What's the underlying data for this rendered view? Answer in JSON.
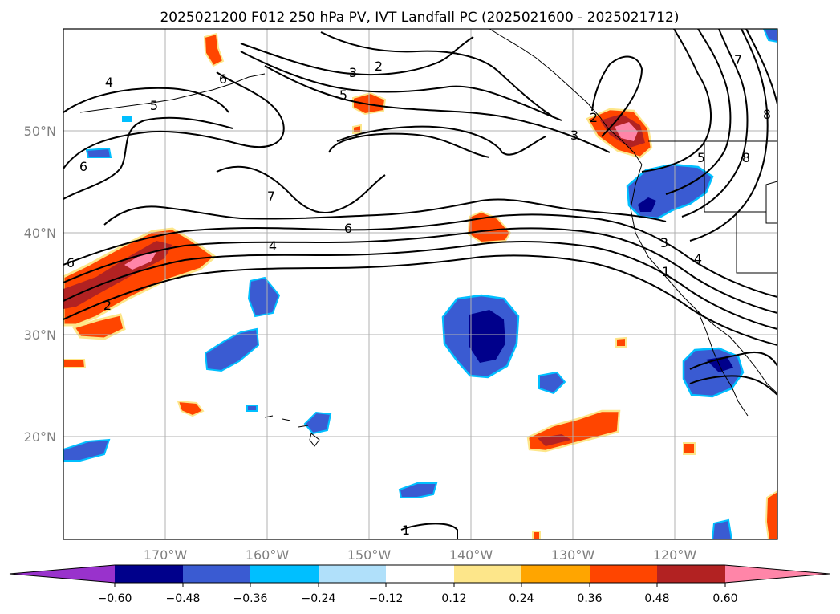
{
  "title": "2025021200 F012 250 hPa PV, IVT Landfall PC (2025021600 - 2025021712)",
  "map": {
    "projection": "PlateCarree",
    "lon_range": [
      -180,
      -110
    ],
    "lat_range": [
      10,
      60
    ],
    "gridlines": true,
    "coastlines": true,
    "state_borders": true
  },
  "lon_ticks": [
    "170°W",
    "160°W",
    "150°W",
    "140°W",
    "130°W",
    "120°W"
  ],
  "lat_ticks": [
    "50°N",
    "40°N",
    "30°N",
    "20°N"
  ],
  "contours": {
    "color": "#000000",
    "field": "250 hPa PV",
    "labels": [
      "4",
      "5",
      "6",
      "2",
      "3",
      "5",
      "6",
      "7",
      "6",
      "4",
      "2",
      "3",
      "7",
      "8",
      "8",
      "3",
      "4",
      "1",
      "1",
      "2",
      "5",
      "6"
    ]
  },
  "shading": {
    "field": "IVT Landfall PC",
    "colorbar": {
      "ticks": [
        "−0.60",
        "−0.48",
        "−0.36",
        "−0.24",
        "−0.12",
        "0.12",
        "0.24",
        "0.36",
        "0.48",
        "0.60"
      ],
      "colors": [
        "#9932cc",
        "#00008b",
        "#3a5bd2",
        "#00bfff",
        "#b0e0fa",
        "#ffffff",
        "#fde68a",
        "#ffa500",
        "#ff4500",
        "#b22222",
        "#ff85a8"
      ],
      "extend": "both",
      "orientation": "horizontal"
    },
    "negative_colors": [
      "#00008b",
      "#3a5bd2",
      "#00bfff",
      "#b0e0fa"
    ],
    "positive_colors": [
      "#fde68a",
      "#ffa500",
      "#ff4500",
      "#b22222",
      "#ff85a8"
    ]
  }
}
